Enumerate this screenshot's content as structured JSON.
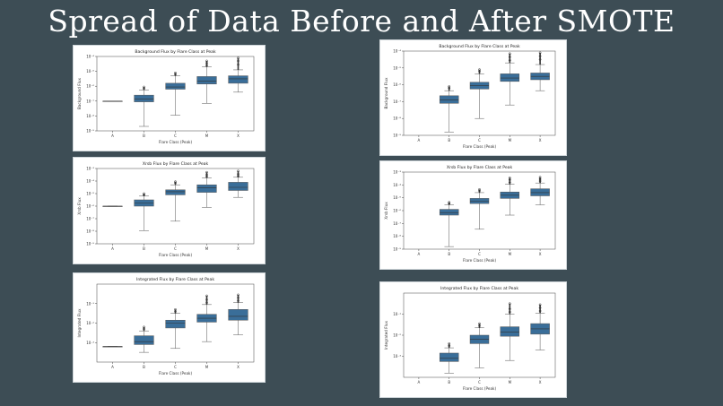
{
  "slide": {
    "title": "Spread of Data Before and After SMOTE"
  },
  "chart_data": [
    {
      "type": "box",
      "id": "bg-before",
      "title": "Background Flux by Flare Class at Peak",
      "xlabel": "Flare Class (Peak)",
      "ylabel": "Background Flux",
      "categories": [
        "A",
        "B",
        "C",
        "M",
        "X"
      ],
      "ylog": true,
      "ylim_exp": [
        -9,
        -4
      ],
      "yticks": [
        "10⁻⁹",
        "10⁻⁸",
        "10⁻⁷",
        "10⁻⁶",
        "10⁻⁵",
        "10⁻⁴"
      ],
      "box_color": "#3a6e99",
      "boxes": [
        {
          "min": -7.0,
          "q1": -7.0,
          "med": -7.0,
          "q3": -7.0,
          "max": -7.0,
          "outliers": []
        },
        {
          "min": -8.7,
          "q1": -7.05,
          "med": -6.85,
          "q3": -6.6,
          "max": -6.25,
          "outliers": [
            -6.15,
            -6.05
          ]
        },
        {
          "min": -7.95,
          "q1": -6.2,
          "med": -6.05,
          "q3": -5.8,
          "max": -5.3,
          "outliers": [
            -5.2,
            -5.1
          ]
        },
        {
          "min": -7.15,
          "q1": -5.85,
          "med": -5.65,
          "q3": -5.35,
          "max": -4.7,
          "outliers": [
            -4.6,
            -4.45,
            -4.3
          ]
        },
        {
          "min": -6.4,
          "q1": -5.8,
          "med": -5.5,
          "q3": -5.3,
          "max": -4.9,
          "outliers": [
            -4.55,
            -4.3,
            -4.1
          ]
        }
      ]
    },
    {
      "type": "box",
      "id": "bg-after",
      "title": "Background Flux by Flare Class at Peak",
      "xlabel": "Flare Class (Peak)",
      "ylabel": "Background Flux",
      "categories": [
        "A",
        "B",
        "C",
        "M",
        "X"
      ],
      "ylog": true,
      "ylim_exp": [
        -9,
        -4
      ],
      "yticks": [
        "10⁻⁹",
        "10⁻⁸",
        "10⁻⁷",
        "10⁻⁶",
        "10⁻⁵",
        "10⁻⁴"
      ],
      "box_color": "#3a6e99",
      "boxes": [
        {
          "min": null,
          "q1": null,
          "med": null,
          "q3": null,
          "max": null,
          "outliers": []
        },
        {
          "min": -8.8,
          "q1": -7.1,
          "med": -6.9,
          "q3": -6.65,
          "max": -6.35,
          "outliers": [
            -6.2,
            -6.1
          ]
        },
        {
          "min": -8.0,
          "q1": -6.25,
          "med": -6.05,
          "q3": -5.85,
          "max": -5.35,
          "outliers": [
            -5.2,
            -5.1
          ]
        },
        {
          "min": -7.2,
          "q1": -5.8,
          "med": -5.6,
          "q3": -5.35,
          "max": -4.7,
          "outliers": [
            -4.55,
            -4.35,
            -4.15
          ]
        },
        {
          "min": -6.35,
          "q1": -5.7,
          "med": -5.5,
          "q3": -5.3,
          "max": -4.8,
          "outliers": [
            -4.5,
            -4.3,
            -4.1
          ]
        }
      ]
    },
    {
      "type": "box",
      "id": "xrsb-before",
      "title": "Xrsb Flux by Flare Class at Peak",
      "xlabel": "Flare Class (Peak)",
      "ylabel": "Xrsb Flux",
      "categories": [
        "A",
        "B",
        "C",
        "M",
        "X"
      ],
      "ylog": true,
      "ylim_exp": [
        -9,
        -3
      ],
      "yticks": [
        "10⁻⁹",
        "10⁻⁸",
        "10⁻⁷",
        "10⁻⁶",
        "10⁻⁵",
        "10⁻⁴",
        "10⁻³"
      ],
      "box_color": "#3a6e99",
      "boxes": [
        {
          "min": -6.0,
          "q1": -6.0,
          "med": -6.0,
          "q3": -6.0,
          "max": -6.0,
          "outliers": []
        },
        {
          "min": -7.95,
          "q1": -6.0,
          "med": -5.75,
          "q3": -5.5,
          "max": -5.2,
          "outliers": [
            -5.1,
            -5.0
          ]
        },
        {
          "min": -7.2,
          "q1": -5.1,
          "med": -4.85,
          "q3": -4.7,
          "max": -4.3,
          "outliers": [
            -4.15,
            -4.05
          ]
        },
        {
          "min": -6.1,
          "q1": -4.9,
          "med": -4.55,
          "q3": -4.3,
          "max": -3.75,
          "outliers": [
            -3.65,
            -3.5,
            -3.3
          ]
        },
        {
          "min": -5.3,
          "q1": -4.75,
          "med": -4.5,
          "q3": -4.1,
          "max": -3.7,
          "outliers": [
            -3.6,
            -3.45,
            -3.2
          ]
        }
      ]
    },
    {
      "type": "box",
      "id": "xrsb-after",
      "title": "Xrsb Flux by Flare Class at Peak",
      "xlabel": "Flare Class (Peak)",
      "ylabel": "Xrsb Flux",
      "categories": [
        "A",
        "B",
        "C",
        "M",
        "X"
      ],
      "ylog": true,
      "ylim_exp": [
        -9,
        -3
      ],
      "yticks": [
        "10⁻⁹",
        "10⁻⁸",
        "10⁻⁷",
        "10⁻⁶",
        "10⁻⁵",
        "10⁻⁴",
        "10⁻³"
      ],
      "box_color": "#3a6e99",
      "boxes": [
        {
          "min": null,
          "q1": null,
          "med": null,
          "q3": null,
          "max": null,
          "outliers": []
        },
        {
          "min": -8.8,
          "q1": -6.35,
          "med": -6.15,
          "q3": -5.9,
          "max": -5.55,
          "outliers": [
            -5.45,
            -5.35
          ]
        },
        {
          "min": -7.45,
          "q1": -5.45,
          "med": -5.25,
          "q3": -5.05,
          "max": -4.6,
          "outliers": [
            -4.45,
            -4.35
          ]
        },
        {
          "min": -6.35,
          "q1": -5.05,
          "med": -4.8,
          "q3": -4.55,
          "max": -3.95,
          "outliers": [
            -3.8,
            -3.6,
            -3.45
          ]
        },
        {
          "min": -5.55,
          "q1": -4.85,
          "med": -4.6,
          "q3": -4.3,
          "max": -3.85,
          "outliers": [
            -3.7,
            -3.55,
            -3.4
          ]
        }
      ]
    },
    {
      "type": "box",
      "id": "int-before",
      "title": "Integrated Flux by Flare Class at Peak",
      "xlabel": "Flare Class (Peak)",
      "ylabel": "Integrated Flux",
      "categories": [
        "A",
        "B",
        "C",
        "M",
        "X"
      ],
      "ylog": true,
      "ylim_exp": [
        -4,
        0
      ],
      "yticks": [
        "10⁻³",
        "10⁻²",
        "10⁻¹"
      ],
      "ytick_exps": [
        -3,
        -2,
        -1
      ],
      "box_color": "#3a6e99",
      "boxes": [
        {
          "min": -3.2,
          "q1": -3.2,
          "med": -3.2,
          "q3": -3.2,
          "max": -3.2,
          "outliers": []
        },
        {
          "min": -3.5,
          "q1": -3.1,
          "med": -2.95,
          "q3": -2.65,
          "max": -2.4,
          "outliers": [
            -2.3,
            -2.2
          ]
        },
        {
          "min": -3.3,
          "q1": -2.25,
          "med": -2.0,
          "q3": -1.85,
          "max": -1.5,
          "outliers": [
            -1.4,
            -1.3
          ]
        },
        {
          "min": -2.95,
          "q1": -1.95,
          "med": -1.75,
          "q3": -1.55,
          "max": -1.05,
          "outliers": [
            -0.95,
            -0.8,
            -0.6
          ]
        },
        {
          "min": -2.6,
          "q1": -1.85,
          "med": -1.65,
          "q3": -1.3,
          "max": -0.95,
          "outliers": [
            -0.85,
            -0.7,
            -0.55
          ]
        }
      ]
    },
    {
      "type": "box",
      "id": "int-after",
      "title": "Integrated Flux by Flare Class at Peak",
      "xlabel": "Flare Class (Peak)",
      "ylabel": "Integrated Flux",
      "categories": [
        "A",
        "B",
        "C",
        "M",
        "X"
      ],
      "ylog": true,
      "ylim_exp": [
        -4,
        0
      ],
      "yticks": [
        "10⁻³",
        "10⁻²",
        "10⁻¹"
      ],
      "ytick_exps": [
        -3,
        -2,
        -1
      ],
      "box_color": "#3a6e99",
      "boxes": [
        {
          "min": null,
          "q1": null,
          "med": null,
          "q3": null,
          "max": null,
          "outliers": []
        },
        {
          "min": -3.8,
          "q1": -3.25,
          "med": -3.1,
          "q3": -2.85,
          "max": -2.6,
          "outliers": [
            -2.5,
            -2.4
          ]
        },
        {
          "min": -3.55,
          "q1": -2.4,
          "med": -2.2,
          "q3": -2.0,
          "max": -1.65,
          "outliers": [
            -1.55,
            -1.45
          ]
        },
        {
          "min": -3.2,
          "q1": -2.05,
          "med": -1.85,
          "q3": -1.6,
          "max": -1.0,
          "outliers": [
            -0.9,
            -0.75,
            -0.5
          ]
        },
        {
          "min": -2.7,
          "q1": -1.95,
          "med": -1.7,
          "q3": -1.45,
          "max": -0.95,
          "outliers": [
            -0.85,
            -0.7,
            -0.55
          ]
        }
      ]
    }
  ]
}
